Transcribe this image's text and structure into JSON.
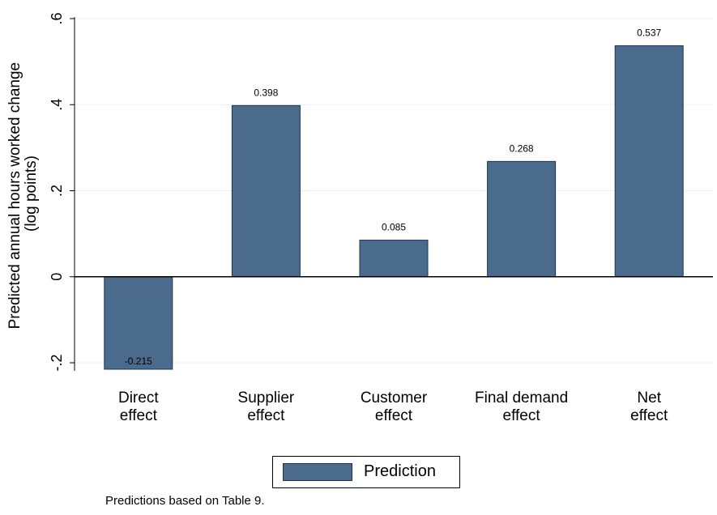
{
  "chart_data": {
    "type": "bar",
    "categories": [
      [
        "Direct",
        "effect"
      ],
      [
        "Supplier",
        "effect"
      ],
      [
        "Customer",
        "effect"
      ],
      [
        "Final demand",
        "effect"
      ],
      [
        "Net",
        "effect"
      ]
    ],
    "series": [
      {
        "name": "Prediction",
        "values": [
          -0.215,
          0.398,
          0.085,
          0.268,
          0.537
        ],
        "value_labels": [
          "-0.215",
          "0.398",
          "0.085",
          "0.268",
          "0.537"
        ],
        "color": "#4a6b8c",
        "edge_color": "#1c3450"
      }
    ],
    "ylabel": [
      "Predicted annual hours worked change",
      "(log points)"
    ],
    "xlabel": "",
    "yticks": [
      -0.2,
      0,
      0.2,
      0.4,
      0.6
    ],
    "ytick_labels": [
      "-.2",
      "0",
      ".2",
      ".4",
      ".6"
    ],
    "ylim": [
      -0.2,
      0.6
    ],
    "grid": true,
    "grid_color": "#eaf2f3",
    "legend_position": "bottom-center",
    "note": "Predictions based on Table 9."
  }
}
